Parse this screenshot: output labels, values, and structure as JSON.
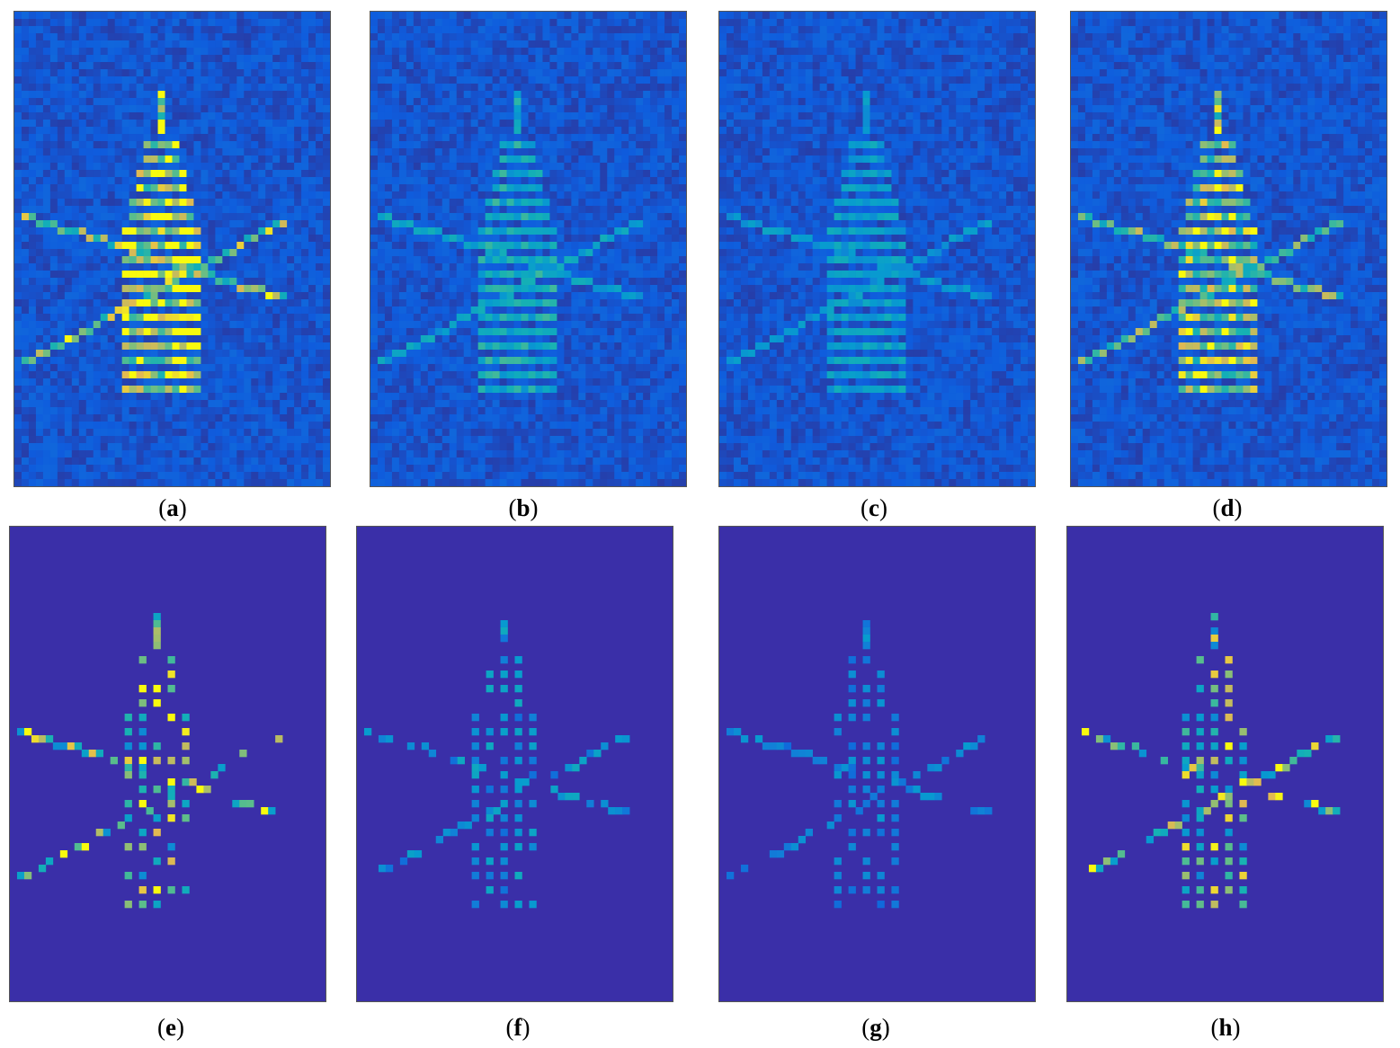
{
  "figure": {
    "panels": [
      {
        "id": "a",
        "label": "a",
        "row": "top",
        "kind": "noisy",
        "intensity": 1.0
      },
      {
        "id": "b",
        "label": "b",
        "row": "top",
        "kind": "noisy",
        "intensity": 0.45
      },
      {
        "id": "c",
        "label": "c",
        "row": "top",
        "kind": "noisy",
        "intensity": 0.35
      },
      {
        "id": "d",
        "label": "d",
        "row": "top",
        "kind": "noisy",
        "intensity": 0.85
      },
      {
        "id": "e",
        "label": "e",
        "row": "bottom",
        "kind": "sparse",
        "intensity": 1.0
      },
      {
        "id": "f",
        "label": "f",
        "row": "bottom",
        "kind": "sparse",
        "intensity": 0.4
      },
      {
        "id": "g",
        "label": "g",
        "row": "bottom",
        "kind": "sparse",
        "intensity": 0.3
      },
      {
        "id": "h",
        "label": "h",
        "row": "bottom",
        "kind": "sparse",
        "intensity": 0.9
      }
    ],
    "colormap": "parula",
    "colors": {
      "background_low": "#3a2fa8",
      "low": "#3b4fd6",
      "mid": "#1fa8c6",
      "high": "#5ec962",
      "peak": "#f3d92a"
    }
  }
}
